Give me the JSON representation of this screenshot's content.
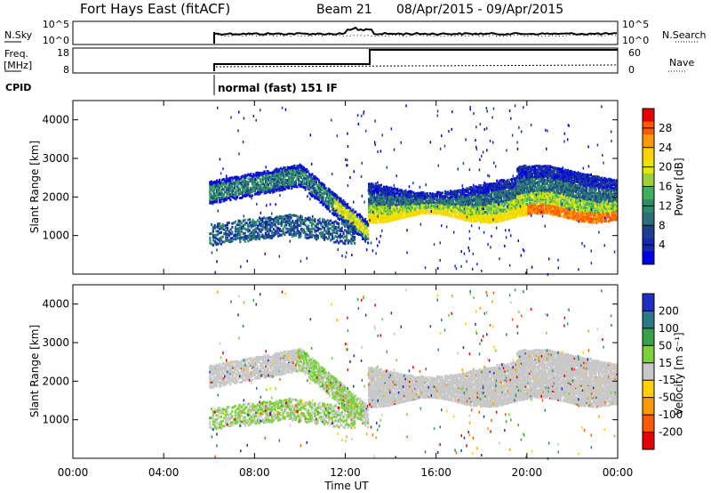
{
  "header": {
    "title": "Fort Hays East (fitACF)",
    "beam": "Beam 21",
    "date_range": "08/Apr/2015 - 09/Apr/2015"
  },
  "noise_panel": {
    "left_label": "N.Sky",
    "right_label": "N.Search",
    "left_ticks": [
      "10^5",
      "10^0"
    ],
    "right_ticks": [
      "10^5",
      "10^0"
    ]
  },
  "freq_panel": {
    "left_label_1": "Freq.",
    "left_label_2": "[MHz]",
    "right_label": "Nave",
    "left_ticks": [
      "18",
      "8"
    ],
    "right_ticks": [
      "60",
      "0"
    ]
  },
  "cpid": {
    "label": "CPID",
    "mode": "normal (fast) 151 IF"
  },
  "x_axis": {
    "label": "Time UT",
    "ticks": [
      "00:00",
      "04:00",
      "08:00",
      "12:00",
      "16:00",
      "20:00",
      "00:00"
    ]
  },
  "power_colorbar": {
    "label": "Power [dB]",
    "ticks": [
      "28",
      "24",
      "20",
      "16",
      "12",
      "8",
      "4"
    ],
    "colors": [
      "#e60000",
      "#ff5a00",
      "#ff9900",
      "#ffd200",
      "#e6e600",
      "#9ad13a",
      "#3faf5a",
      "#2e8a67",
      "#2a6f7a",
      "#1e3f8f",
      "#1428b4",
      "#0000e6"
    ]
  },
  "velocity_colorbar": {
    "label": "Velocity [m s⁻¹]",
    "ticks": [
      "200",
      "100",
      "50",
      "15",
      "-15",
      "-50",
      "-100",
      "-200"
    ],
    "colors": [
      "#1e2fbf",
      "#2a7a86",
      "#38a04a",
      "#7ad13a",
      "#c8c8c8",
      "#ffd200",
      "#ff9900",
      "#ff5a00",
      "#e60000"
    ]
  },
  "chart_data": [
    {
      "type": "heatmap",
      "title": "Power",
      "xlabel": "Time UT",
      "ylabel": "Slant Range [km]",
      "xlim": [
        "00:00",
        "24:00"
      ],
      "ylim": [
        0,
        4500
      ],
      "y_ticks": [
        1000,
        2000,
        3000,
        4000
      ],
      "colorbar_range": [
        0,
        30
      ],
      "features": [
        {
          "name": "upper band",
          "time": [
            "06:00",
            "13:00"
          ],
          "range_start": [
            2100,
            2600
          ],
          "range_end": [
            1100,
            1000
          ]
        },
        {
          "name": "lower band",
          "time": [
            "06:00",
            "12:30"
          ],
          "range": [
            900,
            1500
          ]
        },
        {
          "name": "main band",
          "time": [
            "13:00",
            "24:00"
          ],
          "range": [
            1500,
            2400
          ]
        }
      ]
    },
    {
      "type": "heatmap",
      "title": "Velocity",
      "xlabel": "Time UT",
      "ylabel": "Slant Range [km]",
      "xlim": [
        "00:00",
        "24:00"
      ],
      "ylim": [
        0,
        4500
      ],
      "y_ticks": [
        1000,
        2000,
        3000,
        4000
      ],
      "colorbar_range": [
        -200,
        200
      ]
    }
  ]
}
